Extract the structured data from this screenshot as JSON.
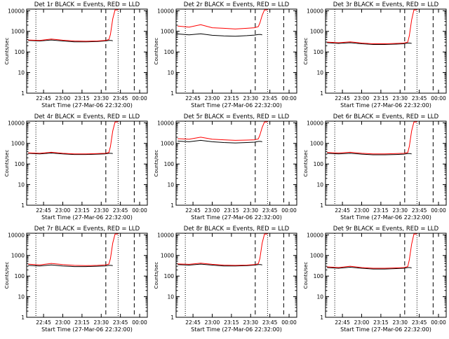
{
  "chart_data": [
    {
      "type": "line",
      "title": "Det 1r BLACK = Events, RED = LLD",
      "xlabel": "Start Time (27-Mar-06 22:32:00)",
      "ylabel": "Counts/sec",
      "yscale": "log",
      "ylim": [
        1,
        12000
      ],
      "xlim": [
        22.53,
        24.1
      ],
      "ytick_labels": [
        "1",
        "10",
        "100",
        "1000",
        "10000"
      ],
      "xtick_labels": [
        "22:45",
        "23:00",
        "23:15",
        "23:30",
        "23:45",
        "00:00"
      ],
      "series": [
        {
          "name": "Events",
          "color": "#000000",
          "x": [
            22.55,
            22.7,
            22.85,
            23.0,
            23.15,
            23.3,
            23.45,
            23.55,
            23.6,
            23.63,
            23.65
          ],
          "y": [
            360,
            340,
            380,
            340,
            310,
            310,
            320,
            340,
            360,
            360,
            350
          ]
        },
        {
          "name": "LLD",
          "color": "#ff0000",
          "x": [
            22.55,
            22.7,
            22.85,
            23.0,
            23.15,
            23.3,
            23.45,
            23.55,
            23.6,
            23.62,
            23.65,
            23.68,
            23.72
          ],
          "y": [
            380,
            360,
            420,
            370,
            340,
            330,
            340,
            360,
            400,
            700,
            4000,
            11000,
            11000
          ]
        }
      ]
    },
    {
      "type": "line",
      "title": "Det 2r BLACK = Events, RED = LLD",
      "xlabel": "Start Time (27-Mar-06 22:32:00)",
      "ylabel": "Counts/sec",
      "yscale": "log",
      "ylim": [
        1,
        12000
      ],
      "xlim": [
        22.53,
        24.1
      ],
      "ytick_labels": [
        "1",
        "10",
        "100",
        "1000",
        "10000"
      ],
      "xtick_labels": [
        "22:45",
        "23:00",
        "23:15",
        "23:30",
        "23:45",
        "00:00"
      ],
      "series": [
        {
          "name": "Events",
          "color": "#000000",
          "x": [
            22.55,
            22.7,
            22.85,
            23.0,
            23.15,
            23.3,
            23.45,
            23.55,
            23.6,
            23.63,
            23.65
          ],
          "y": [
            750,
            680,
            760,
            640,
            600,
            580,
            620,
            660,
            700,
            700,
            680
          ]
        },
        {
          "name": "LLD",
          "color": "#ff0000",
          "x": [
            22.55,
            22.7,
            22.85,
            23.0,
            23.15,
            23.3,
            23.45,
            23.55,
            23.6,
            23.62,
            23.65,
            23.68,
            23.72
          ],
          "y": [
            1800,
            1600,
            2100,
            1500,
            1400,
            1300,
            1400,
            1500,
            1700,
            2500,
            6000,
            11000,
            11000
          ]
        }
      ]
    },
    {
      "type": "line",
      "title": "Det 3r BLACK = Events, RED = LLD",
      "xlabel": "Start Time (27-Mar-06 22:32:00)",
      "ylabel": "Counts/sec",
      "yscale": "log",
      "ylim": [
        1,
        12000
      ],
      "xlim": [
        22.53,
        24.1
      ],
      "ytick_labels": [
        "1",
        "10",
        "100",
        "1000",
        "10000"
      ],
      "xtick_labels": [
        "22:45",
        "23:00",
        "23:15",
        "23:30",
        "23:45",
        "00:00"
      ],
      "series": [
        {
          "name": "Events",
          "color": "#000000",
          "x": [
            22.55,
            22.7,
            22.85,
            23.0,
            23.15,
            23.3,
            23.45,
            23.55,
            23.6,
            23.63,
            23.65
          ],
          "y": [
            280,
            260,
            280,
            250,
            230,
            230,
            240,
            250,
            270,
            270,
            260
          ]
        },
        {
          "name": "LLD",
          "color": "#ff0000",
          "x": [
            22.55,
            22.7,
            22.85,
            23.0,
            23.15,
            23.3,
            23.45,
            23.55,
            23.6,
            23.62,
            23.65,
            23.68,
            23.72
          ],
          "y": [
            300,
            280,
            310,
            270,
            250,
            250,
            260,
            270,
            300,
            600,
            3500,
            11000,
            11000
          ]
        }
      ]
    },
    {
      "type": "line",
      "title": "Det 4r BLACK = Events, RED = LLD",
      "xlabel": "Start Time (27-Mar-06 22:32:00)",
      "ylabel": "Counts/sec",
      "yscale": "log",
      "ylim": [
        1,
        12000
      ],
      "xlim": [
        22.53,
        24.1
      ],
      "ytick_labels": [
        "1",
        "10",
        "100",
        "1000",
        "10000"
      ],
      "xtick_labels": [
        "22:45",
        "23:00",
        "23:15",
        "23:30",
        "23:45",
        "00:00"
      ],
      "series": [
        {
          "name": "Events",
          "color": "#000000",
          "x": [
            22.55,
            22.7,
            22.85,
            23.0,
            23.15,
            23.3,
            23.45,
            23.55,
            23.6,
            23.63,
            23.65
          ],
          "y": [
            330,
            310,
            340,
            310,
            290,
            290,
            300,
            310,
            330,
            330,
            320
          ]
        },
        {
          "name": "LLD",
          "color": "#ff0000",
          "x": [
            22.55,
            22.7,
            22.85,
            23.0,
            23.15,
            23.3,
            23.45,
            23.55,
            23.6,
            23.62,
            23.65,
            23.68,
            23.72
          ],
          "y": [
            350,
            330,
            370,
            330,
            310,
            310,
            320,
            330,
            360,
            700,
            4000,
            11000,
            11000
          ]
        }
      ]
    },
    {
      "type": "line",
      "title": "Det 5r BLACK = Events, RED = LLD",
      "xlabel": "Start Time (27-Mar-06 22:32:00)",
      "ylabel": "Counts/sec",
      "yscale": "log",
      "ylim": [
        1,
        12000
      ],
      "xlim": [
        22.53,
        24.1
      ],
      "ytick_labels": [
        "1",
        "10",
        "100",
        "1000",
        "10000"
      ],
      "xtick_labels": [
        "22:45",
        "23:00",
        "23:15",
        "23:30",
        "23:45",
        "00:00"
      ],
      "series": [
        {
          "name": "Events",
          "color": "#000000",
          "x": [
            22.55,
            22.7,
            22.85,
            23.0,
            23.15,
            23.3,
            23.45,
            23.55,
            23.6,
            23.63,
            23.65
          ],
          "y": [
            1300,
            1200,
            1400,
            1200,
            1100,
            1050,
            1100,
            1150,
            1250,
            1250,
            1200
          ]
        },
        {
          "name": "LLD",
          "color": "#ff0000",
          "x": [
            22.55,
            22.7,
            22.85,
            23.0,
            23.15,
            23.3,
            23.45,
            23.55,
            23.6,
            23.62,
            23.65,
            23.68,
            23.72
          ],
          "y": [
            1700,
            1600,
            2000,
            1600,
            1500,
            1400,
            1450,
            1500,
            1650,
            2500,
            6000,
            11000,
            11000
          ]
        }
      ]
    },
    {
      "type": "line",
      "title": "Det 6r BLACK = Events, RED = LLD",
      "xlabel": "Start Time (27-Mar-06 22:32:00)",
      "ylabel": "Counts/sec",
      "yscale": "log",
      "ylim": [
        1,
        12000
      ],
      "xlim": [
        22.53,
        24.1
      ],
      "ytick_labels": [
        "1",
        "10",
        "100",
        "1000",
        "10000"
      ],
      "xtick_labels": [
        "22:45",
        "23:00",
        "23:15",
        "23:30",
        "23:45",
        "00:00"
      ],
      "series": [
        {
          "name": "Events",
          "color": "#000000",
          "x": [
            22.55,
            22.7,
            22.85,
            23.0,
            23.15,
            23.3,
            23.45,
            23.55,
            23.6,
            23.63,
            23.65
          ],
          "y": [
            330,
            310,
            330,
            300,
            280,
            280,
            290,
            300,
            320,
            320,
            310
          ]
        },
        {
          "name": "LLD",
          "color": "#ff0000",
          "x": [
            22.55,
            22.7,
            22.85,
            23.0,
            23.15,
            23.3,
            23.45,
            23.55,
            23.6,
            23.62,
            23.65,
            23.68,
            23.72
          ],
          "y": [
            360,
            340,
            370,
            330,
            310,
            310,
            320,
            330,
            360,
            700,
            4000,
            11000,
            11000
          ]
        }
      ]
    },
    {
      "type": "line",
      "title": "Det 7r BLACK = Events, RED = LLD",
      "xlabel": "Start Time (27-Mar-06 22:32:00)",
      "ylabel": "Counts/sec",
      "yscale": "log",
      "ylim": [
        1,
        12000
      ],
      "xlim": [
        22.53,
        24.1
      ],
      "ytick_labels": [
        "1",
        "10",
        "100",
        "1000",
        "10000"
      ],
      "xtick_labels": [
        "22:45",
        "23:00",
        "23:15",
        "23:30",
        "23:45",
        "00:00"
      ],
      "series": [
        {
          "name": "Events",
          "color": "#000000",
          "x": [
            22.55,
            22.7,
            22.85,
            23.0,
            23.15,
            23.3,
            23.45,
            23.55,
            23.6,
            23.63,
            23.65
          ],
          "y": [
            330,
            310,
            350,
            310,
            290,
            290,
            300,
            310,
            330,
            330,
            320
          ]
        },
        {
          "name": "LLD",
          "color": "#ff0000",
          "x": [
            22.55,
            22.7,
            22.85,
            23.0,
            23.15,
            23.3,
            23.45,
            23.55,
            23.6,
            23.62,
            23.65,
            23.68,
            23.72
          ],
          "y": [
            380,
            350,
            410,
            360,
            330,
            320,
            330,
            350,
            380,
            700,
            4000,
            11000,
            11000
          ]
        }
      ]
    },
    {
      "type": "line",
      "title": "Det 8r BLACK = Events, RED = LLD",
      "xlabel": "Start Time (27-Mar-06 22:32:00)",
      "ylabel": "Counts/sec",
      "yscale": "log",
      "ylim": [
        1,
        12000
      ],
      "xlim": [
        22.53,
        24.1
      ],
      "ytick_labels": [
        "1",
        "10",
        "100",
        "1000",
        "10000"
      ],
      "xtick_labels": [
        "22:45",
        "23:00",
        "23:15",
        "23:30",
        "23:45",
        "00:00"
      ],
      "series": [
        {
          "name": "Events",
          "color": "#000000",
          "x": [
            22.55,
            22.7,
            22.85,
            23.0,
            23.15,
            23.3,
            23.45,
            23.55,
            23.6,
            23.63,
            23.65
          ],
          "y": [
            360,
            340,
            380,
            340,
            310,
            310,
            320,
            340,
            360,
            360,
            350
          ]
        },
        {
          "name": "LLD",
          "color": "#ff0000",
          "x": [
            22.55,
            22.7,
            22.85,
            23.0,
            23.15,
            23.3,
            23.45,
            23.55,
            23.6,
            23.62,
            23.65,
            23.68,
            23.72
          ],
          "y": [
            390,
            370,
            420,
            370,
            340,
            330,
            340,
            360,
            400,
            700,
            4000,
            11000,
            11000
          ]
        }
      ]
    },
    {
      "type": "line",
      "title": "Det 9r BLACK = Events, RED = LLD",
      "xlabel": "Start Time (27-Mar-06 22:32:00)",
      "ylabel": "Counts/sec",
      "yscale": "log",
      "ylim": [
        1,
        12000
      ],
      "xlim": [
        22.53,
        24.1
      ],
      "ytick_labels": [
        "1",
        "10",
        "100",
        "1000",
        "10000"
      ],
      "xtick_labels": [
        "22:45",
        "23:00",
        "23:15",
        "23:30",
        "23:45",
        "00:00"
      ],
      "series": [
        {
          "name": "Events",
          "color": "#000000",
          "x": [
            22.55,
            22.7,
            22.85,
            23.0,
            23.15,
            23.3,
            23.45,
            23.55,
            23.6,
            23.63,
            23.65
          ],
          "y": [
            260,
            240,
            270,
            240,
            220,
            220,
            230,
            240,
            260,
            260,
            250
          ]
        },
        {
          "name": "LLD",
          "color": "#ff0000",
          "x": [
            22.55,
            22.7,
            22.85,
            23.0,
            23.15,
            23.3,
            23.45,
            23.55,
            23.6,
            23.62,
            23.65,
            23.68,
            23.72
          ],
          "y": [
            280,
            260,
            300,
            260,
            240,
            240,
            250,
            260,
            290,
            600,
            3500,
            11000,
            11000
          ]
        }
      ]
    }
  ]
}
